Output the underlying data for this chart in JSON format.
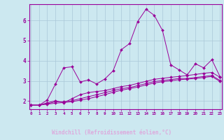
{
  "xlabel": "Windchill (Refroidissement éolien,°C)",
  "background_color": "#cce8f0",
  "line_color": "#990099",
  "label_bar_color": "#660066",
  "grid_color": "#aac8d8",
  "text_color": "#990099",
  "label_text_color": "#cc66cc",
  "x_ticks": [
    0,
    1,
    2,
    3,
    4,
    5,
    6,
    7,
    8,
    9,
    10,
    11,
    12,
    13,
    14,
    15,
    16,
    17,
    18,
    19,
    20,
    21,
    22,
    23
  ],
  "ylim": [
    1.6,
    6.8
  ],
  "xlim": [
    -0.2,
    23.2
  ],
  "yticks": [
    2,
    3,
    4,
    5,
    6
  ],
  "series1": {
    "x": [
      0,
      1,
      2,
      3,
      4,
      5,
      6,
      7,
      8,
      9,
      10,
      11,
      12,
      13,
      14,
      15,
      16,
      17,
      18,
      19,
      20,
      21,
      22,
      23
    ],
    "y": [
      1.8,
      1.8,
      2.05,
      2.85,
      3.65,
      3.7,
      2.95,
      3.05,
      2.85,
      3.1,
      3.5,
      4.55,
      4.85,
      5.95,
      6.55,
      6.25,
      5.5,
      3.8,
      3.55,
      3.3,
      3.85,
      3.65,
      4.05,
      3.2
    ]
  },
  "series2": {
    "x": [
      0,
      1,
      2,
      3,
      4,
      5,
      6,
      7,
      8,
      9,
      10,
      11,
      12,
      13,
      14,
      15,
      16,
      17,
      18,
      19,
      20,
      21,
      22,
      23
    ],
    "y": [
      1.8,
      1.8,
      1.92,
      2.02,
      1.92,
      2.12,
      2.32,
      2.42,
      2.48,
      2.52,
      2.62,
      2.72,
      2.78,
      2.88,
      2.98,
      3.08,
      3.13,
      3.18,
      3.22,
      3.27,
      3.32,
      3.38,
      3.42,
      3.18
    ]
  },
  "series3": {
    "x": [
      0,
      1,
      2,
      3,
      4,
      5,
      6,
      7,
      8,
      9,
      10,
      11,
      12,
      13,
      14,
      15,
      16,
      17,
      18,
      19,
      20,
      21,
      22,
      23
    ],
    "y": [
      1.8,
      1.8,
      1.87,
      1.97,
      1.97,
      2.02,
      2.12,
      2.22,
      2.32,
      2.42,
      2.52,
      2.62,
      2.67,
      2.77,
      2.87,
      2.97,
      3.02,
      3.07,
      3.12,
      3.12,
      3.17,
      3.22,
      3.27,
      3.02
    ]
  },
  "series4": {
    "x": [
      0,
      1,
      2,
      3,
      4,
      5,
      6,
      7,
      8,
      9,
      10,
      11,
      12,
      13,
      14,
      15,
      16,
      17,
      18,
      19,
      20,
      21,
      22,
      23
    ],
    "y": [
      1.8,
      1.8,
      1.85,
      1.9,
      1.93,
      1.97,
      2.05,
      2.12,
      2.22,
      2.32,
      2.44,
      2.54,
      2.62,
      2.7,
      2.8,
      2.9,
      2.96,
      3.01,
      3.06,
      3.09,
      3.12,
      3.17,
      3.22,
      2.97
    ]
  }
}
